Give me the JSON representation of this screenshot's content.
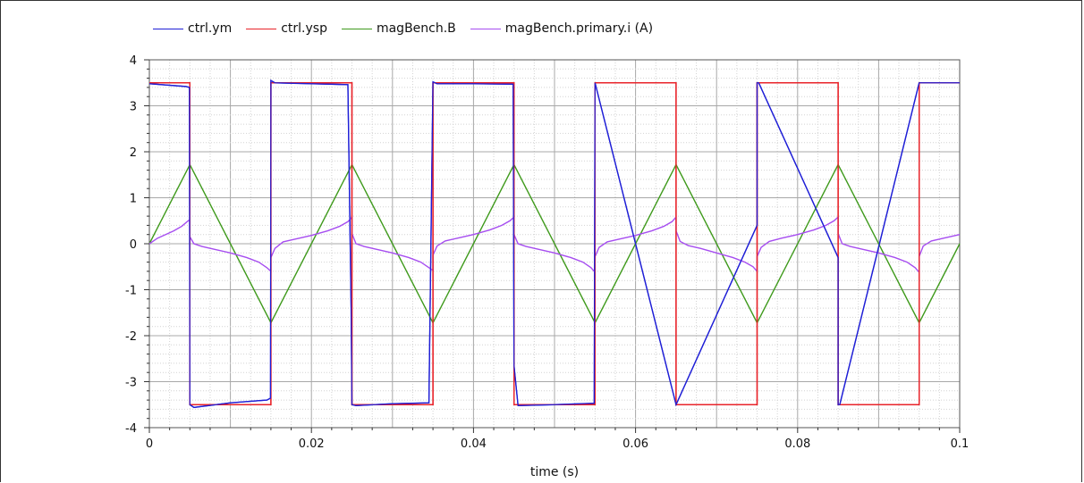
{
  "chart_data": {
    "type": "line",
    "title": "",
    "xlabel": "time (s)",
    "ylabel": "",
    "xlim": [
      0,
      0.1
    ],
    "ylim": [
      -4,
      4
    ],
    "x_ticks": [
      "0",
      "0.02",
      "0.04",
      "0.06",
      "0.08",
      "0.1"
    ],
    "y_ticks": [
      "4",
      "3",
      "2",
      "1",
      "0",
      "-1",
      "-2",
      "-3",
      "-4"
    ],
    "grid": true,
    "legend_position": "top-left",
    "series": [
      {
        "name": "ctrl.ym",
        "color": "#1f1fd6",
        "x": [
          0,
          0.0045,
          0.00495,
          0.005,
          0.0055,
          0.01,
          0.0145,
          0.01495,
          0.015,
          0.0155,
          0.02,
          0.0245,
          0.0249,
          0.025,
          0.0255,
          0.03,
          0.0345,
          0.035,
          0.0355,
          0.04,
          0.0449,
          0.045,
          0.0455,
          0.05,
          0.0549,
          0.055,
          0.065,
          0.075,
          0.075,
          0.0752,
          0.085,
          0.085,
          0.0852,
          0.095,
          0.1
        ],
        "y": [
          3.48,
          3.42,
          3.4,
          -3.5,
          -3.56,
          -3.46,
          -3.4,
          -3.36,
          3.55,
          3.5,
          3.48,
          3.46,
          -1.4,
          -3.5,
          -3.52,
          -3.48,
          -3.46,
          3.52,
          3.48,
          3.48,
          3.47,
          -2.65,
          -3.52,
          -3.5,
          -3.47,
          3.5,
          -3.5,
          0.4,
          3.5,
          3.5,
          -0.3,
          -3.5,
          -3.5,
          3.5,
          3.5
        ]
      },
      {
        "name": "ctrl.ysp",
        "color": "#e8232a",
        "x": [
          0,
          0.005,
          0.005,
          0.015,
          0.015,
          0.025,
          0.025,
          0.035,
          0.035,
          0.045,
          0.045,
          0.055,
          0.055,
          0.065,
          0.065,
          0.075,
          0.075,
          0.085,
          0.085,
          0.095,
          0.095,
          0.1
        ],
        "y": [
          3.5,
          3.5,
          -3.5,
          -3.5,
          3.5,
          3.5,
          -3.5,
          -3.5,
          3.5,
          3.5,
          -3.5,
          -3.5,
          3.5,
          3.5,
          -3.5,
          -3.5,
          3.5,
          3.5,
          -3.5,
          -3.5,
          3.5,
          3.5
        ]
      },
      {
        "name": "magBench.B",
        "color": "#3f9a1c",
        "x": [
          0,
          0.005,
          0.015,
          0.025,
          0.035,
          0.045,
          0.055,
          0.065,
          0.075,
          0.085,
          0.095,
          0.1
        ],
        "y": [
          0,
          1.72,
          -1.72,
          1.72,
          -1.72,
          1.72,
          -1.72,
          1.72,
          -1.72,
          1.72,
          -1.72,
          0
        ]
      },
      {
        "name": "magBench.primary.i (A)",
        "color": "#a64df0",
        "x": [
          0,
          0.001,
          0.002,
          0.003,
          0.004,
          0.0048,
          0.005,
          0.005,
          0.0055,
          0.0065,
          0.008,
          0.01,
          0.012,
          0.0135,
          0.0145,
          0.015,
          0.015,
          0.0155,
          0.0165,
          0.018,
          0.02,
          0.022,
          0.0235,
          0.0245,
          0.025,
          0.025,
          0.0255,
          0.0265,
          0.028,
          0.03,
          0.032,
          0.0335,
          0.0345,
          0.035,
          0.035,
          0.0355,
          0.0365,
          0.038,
          0.04,
          0.042,
          0.0435,
          0.0445,
          0.045,
          0.045,
          0.0455,
          0.0465,
          0.048,
          0.05,
          0.052,
          0.0535,
          0.0545,
          0.055,
          0.055,
          0.0555,
          0.0565,
          0.058,
          0.06,
          0.062,
          0.0635,
          0.0645,
          0.065,
          0.065,
          0.0655,
          0.0665,
          0.068,
          0.07,
          0.072,
          0.0735,
          0.0745,
          0.075,
          0.075,
          0.0755,
          0.0765,
          0.078,
          0.08,
          0.082,
          0.0835,
          0.0845,
          0.085,
          0.085,
          0.0855,
          0.0865,
          0.088,
          0.09,
          0.092,
          0.0935,
          0.0945,
          0.095,
          0.095,
          0.0955,
          0.0965,
          0.098,
          0.1
        ],
        "y": [
          0,
          0.12,
          0.2,
          0.28,
          0.38,
          0.5,
          0.52,
          0.15,
          0.0,
          -0.06,
          -0.12,
          -0.2,
          -0.3,
          -0.4,
          -0.52,
          -0.6,
          -0.3,
          -0.1,
          0.04,
          0.1,
          0.18,
          0.28,
          0.38,
          0.48,
          0.58,
          0.22,
          0.0,
          -0.06,
          -0.12,
          -0.2,
          -0.3,
          -0.4,
          -0.52,
          -0.58,
          -0.25,
          -0.05,
          0.06,
          0.12,
          0.2,
          0.3,
          0.4,
          0.5,
          0.58,
          0.2,
          0.0,
          -0.06,
          -0.12,
          -0.2,
          -0.3,
          -0.4,
          -0.52,
          -0.62,
          -0.28,
          -0.08,
          0.04,
          0.1,
          0.18,
          0.28,
          0.38,
          0.48,
          0.58,
          0.28,
          0.05,
          -0.04,
          -0.1,
          -0.2,
          -0.3,
          -0.4,
          -0.5,
          -0.6,
          -0.28,
          -0.08,
          0.05,
          0.12,
          0.2,
          0.3,
          0.4,
          0.5,
          0.58,
          0.22,
          0.0,
          -0.06,
          -0.12,
          -0.2,
          -0.3,
          -0.4,
          -0.52,
          -0.62,
          -0.28,
          -0.05,
          0.06,
          0.12,
          0.2
        ]
      }
    ]
  }
}
